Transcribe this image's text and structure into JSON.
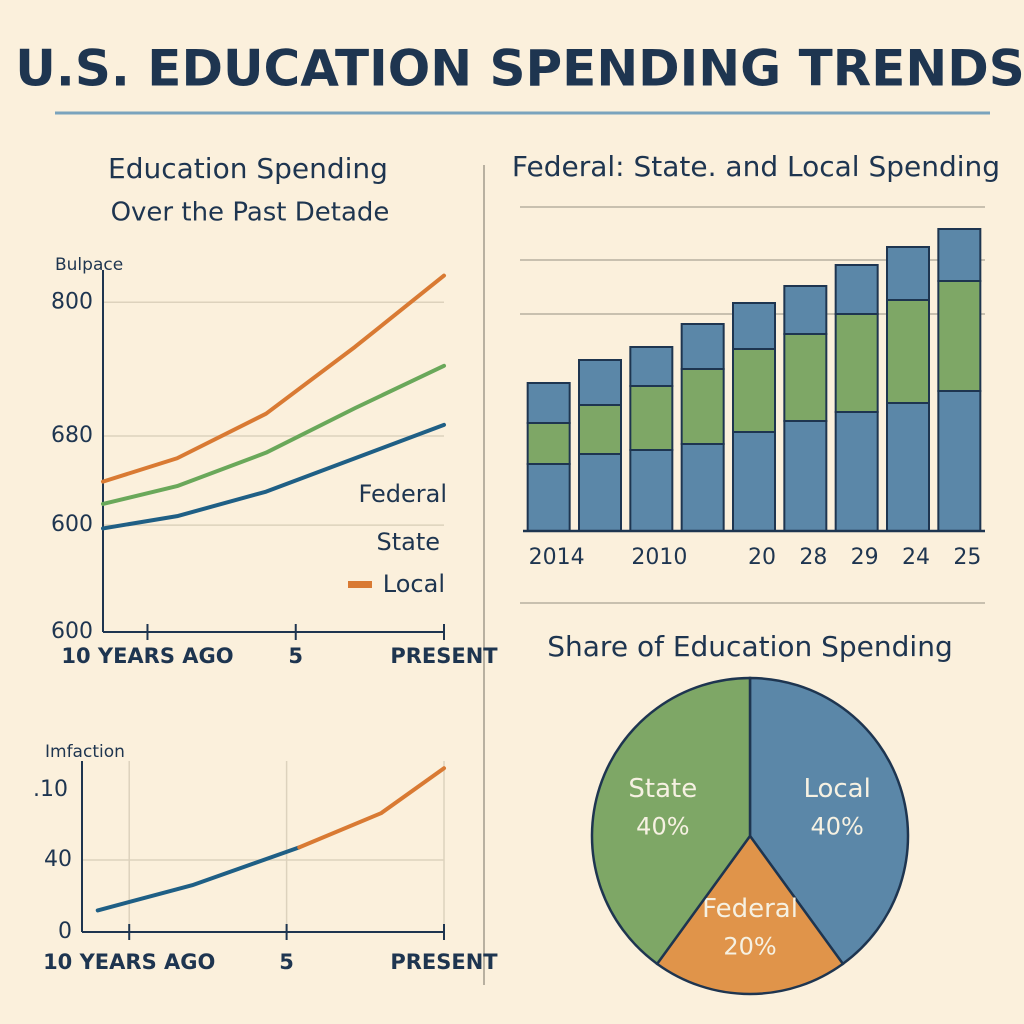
{
  "title": "U.S. EDUCATION SPENDING TRENDS",
  "chart_data": [
    {
      "type": "line",
      "title": "Education Spending",
      "subtitle": "Over the Past Detade",
      "y_label": "Bulpace",
      "origin_label": "600",
      "xlim": [
        11.5,
        0
      ],
      "xticks": [
        {
          "value": 10,
          "label": "10 YEARS AGO"
        },
        5,
        {
          "value": 0,
          "label": "PRESENT"
        }
      ],
      "ylim": [
        504,
        829
      ],
      "yticks": [
        600,
        680,
        800
      ],
      "grid": true,
      "x": [
        11.5,
        9,
        6,
        3,
        0
      ],
      "series": [
        {
          "name": "Federal",
          "color": "#1f5f85",
          "values": [
            597,
            608,
            630,
            660,
            690
          ]
        },
        {
          "name": "State",
          "color": "#6aa85a",
          "values": [
            619,
            635,
            665,
            705,
            743
          ]
        },
        {
          "name": "Local",
          "color": "#d97a33",
          "values": [
            639,
            660,
            700,
            760,
            824
          ]
        }
      ]
    },
    {
      "type": "line",
      "y_label": "Imfaction",
      "top_label": ".10",
      "xlim": [
        11.5,
        0
      ],
      "xticks": [
        {
          "value": 10,
          "label": "10 YEARS AGO"
        },
        5,
        {
          "value": 0,
          "label": "PRESENT"
        }
      ],
      "ylim": [
        0,
        95
      ],
      "yticks": [
        0,
        40
      ],
      "grid": true,
      "series": [
        {
          "color": "#1f5f85",
          "x": [
            11,
            8,
            4.6
          ],
          "values": [
            12,
            26,
            47
          ]
        },
        {
          "color": "#d97a33",
          "x": [
            4.6,
            2,
            0
          ],
          "values": [
            47,
            66,
            91
          ]
        }
      ]
    },
    {
      "type": "bar",
      "stacked": true,
      "title": "Federal: State. and Local Spending",
      "categories": [
        "2014",
        null,
        "2010",
        null,
        "20",
        "28",
        "29",
        "24",
        "25"
      ],
      "ylim": [
        0,
        330
      ],
      "series": [
        {
          "color": "#5b87a8",
          "values": [
            67,
            77,
            81,
            87,
            99,
            110,
            119,
            128,
            140
          ]
        },
        {
          "color": "#7ea766",
          "values": [
            41,
            49,
            64,
            75,
            83,
            87,
            98,
            103,
            110
          ]
        },
        {
          "color": "#5b87a8",
          "values": [
            40,
            45,
            39,
            45,
            46,
            48,
            49,
            53,
            52
          ]
        }
      ]
    },
    {
      "type": "pie",
      "title": "Share of Education Spending",
      "categories": [
        "Local",
        "Federal",
        "State"
      ],
      "values": [
        40,
        20,
        40
      ],
      "value_labels": [
        "40%",
        "20%",
        "40%"
      ],
      "colors": [
        "#5b87a8",
        "#e0944a",
        "#7ea766"
      ]
    }
  ]
}
